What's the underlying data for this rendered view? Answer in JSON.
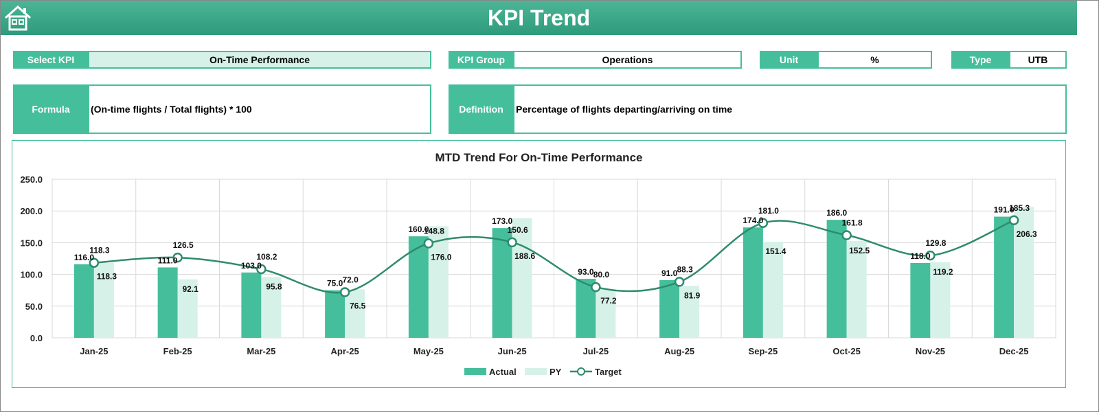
{
  "header": {
    "title": "KPI Trend",
    "icon": "home-icon"
  },
  "fields": {
    "select_kpi_label": "Select KPI",
    "select_kpi_value": "On-Time Performance",
    "kpi_group_label": "KPI Group",
    "kpi_group_value": "Operations",
    "unit_label": "Unit",
    "unit_value": "%",
    "type_label": "Type",
    "type_value": "UTB",
    "formula_label": "Formula",
    "formula_value": "(On-time flights / Total flights) * 100",
    "definition_label": "Definition",
    "definition_value": "Percentage of flights departing/arriving on time"
  },
  "colors": {
    "accent": "#45bf9b",
    "actual": "#45bf9b",
    "py": "#d6f1e8",
    "target": "#2e8b6e"
  },
  "chart_data": {
    "type": "bar",
    "title": "MTD Trend For On-Time Performance",
    "categories": [
      "Jan-25",
      "Feb-25",
      "Mar-25",
      "Apr-25",
      "May-25",
      "Jun-25",
      "Jul-25",
      "Aug-25",
      "Sep-25",
      "Oct-25",
      "Nov-25",
      "Dec-25"
    ],
    "ylim": [
      0,
      250
    ],
    "yticks": [
      "0.0",
      "50.0",
      "100.0",
      "150.0",
      "200.0",
      "250.0"
    ],
    "grid": true,
    "legend": "bottom",
    "series": [
      {
        "name": "Actual",
        "type": "bar",
        "values": [
          116.0,
          111.0,
          103.0,
          75.0,
          160.0,
          173.0,
          93.0,
          91.0,
          174.0,
          186.0,
          118.0,
          191.0
        ]
      },
      {
        "name": "PY",
        "type": "bar",
        "values": [
          118.3,
          92.1,
          95.8,
          76.5,
          176.0,
          188.6,
          77.2,
          81.9,
          151.4,
          152.5,
          119.2,
          206.3
        ]
      },
      {
        "name": "Target",
        "type": "line",
        "values": [
          118.3,
          126.5,
          108.2,
          72.0,
          148.8,
          150.6,
          80.0,
          88.3,
          181.0,
          161.8,
          129.8,
          185.3
        ]
      }
    ]
  }
}
